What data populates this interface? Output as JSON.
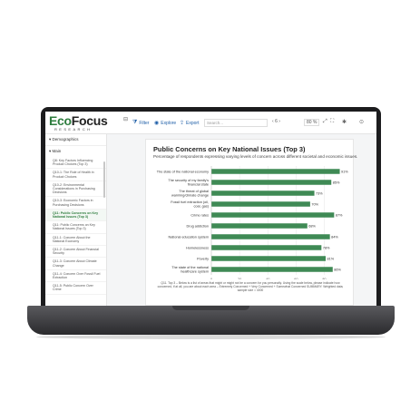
{
  "app": {
    "logo_main": "Eco",
    "logo_main2": "Focus",
    "logo_sub": "RESEARCH"
  },
  "toolbar": {
    "filter_label": "Filter",
    "explore_label": "Explore",
    "export_label": "Export",
    "search_placeholder": "Search...",
    "page_number": "6",
    "zoom_level": "80 %"
  },
  "sidebar": {
    "header": "Demographics",
    "sub": "Main",
    "items": [
      "Q8: Key Factors Influencing Product Choices (Top 3)",
      "Q10-1: The Role of Health in Product Choices",
      "Q10-2: Environmental Considerations in Purchasing Decisions",
      "Q10-3: Economic Factors in Purchasing Decisions",
      "Q11: Public Concerns on Key National Issues (Top 3)",
      "Q11: Public Concerns on Key National Issues (Top 3)",
      "Q11-1: Concern About the National Economy",
      "Q11-2: Concern About Financial Security",
      "Q11-3: Concern About Climate Change",
      "Q11-4: Concern Over Fossil Fuel Extraction",
      "Q11-5: Public Concern Over Crime"
    ],
    "active_index": 4
  },
  "chart_data": {
    "type": "bar",
    "orientation": "horizontal",
    "title": "Public Concerns on Key National Issues (Top 3)",
    "subtitle": "Percentage of respondents expressing varying levels of concern across different societal and economic issues.",
    "categories": [
      "The state of the national economy",
      "The security of my family's financial state",
      "The threat of global warming/climate change",
      "Fossil fuel extraction (oil, coal, gas)",
      "Crime rates",
      "Drug addiction",
      "National education system",
      "Homelessness",
      "Poverty",
      "The state of the national healthcare system"
    ],
    "values": [
      91,
      85,
      73,
      70,
      87,
      68,
      84,
      78,
      81,
      86
    ],
    "value_labels": [
      "91%",
      "85%",
      "73%",
      "70%",
      "87%",
      "68%",
      "84%",
      "78%",
      "81%",
      "86%"
    ],
    "xlim": [
      0,
      90
    ],
    "xticks": [
      0,
      20,
      40,
      60,
      80
    ],
    "grid": true,
    "bar_color": "#3f8a55",
    "footnote": "Q11. Top 3 – Below is a list of areas that might or might not be a concern for you personally. Using the scale below, please indicate how concerned, if at all, you are about each area – Extremely Concerned + Very Concerned + Somewhat Concerned SUMMARY. Weighted data; sample size = 4000"
  }
}
